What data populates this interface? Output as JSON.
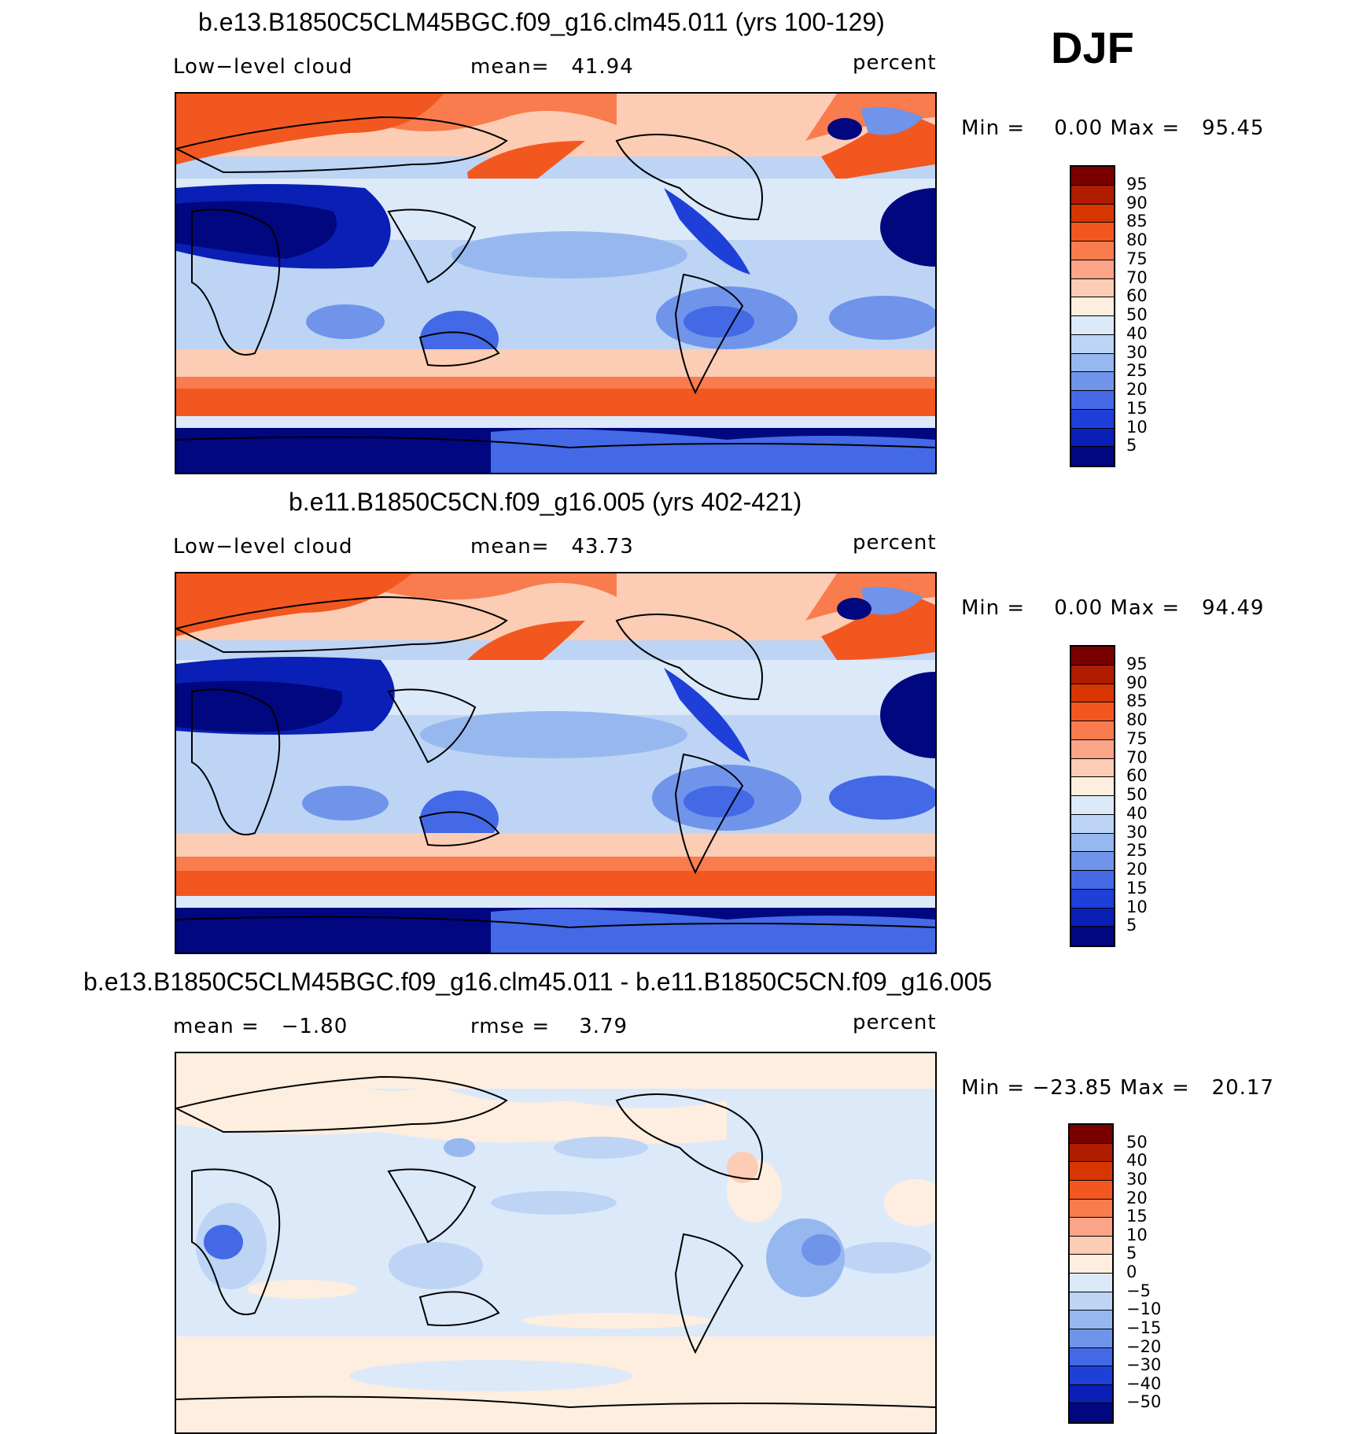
{
  "season": "DJF",
  "panels": [
    {
      "title": "b.e13.B1850C5CLM45BGC.f09_g16.clm45.011 (yrs 100-129)",
      "left_label": "Low−level cloud",
      "center_label": "mean=   41.94",
      "right_label": "percent",
      "minmax": "Min =    0.00 Max =   95.45",
      "colorbar_ticks": [
        "95",
        "90",
        "85",
        "80",
        "75",
        "70",
        "60",
        "50",
        "40",
        "30",
        "25",
        "20",
        "15",
        "10",
        "5"
      ]
    },
    {
      "title": "b.e11.B1850C5CN.f09_g16.005 (yrs 402-421)",
      "left_label": "Low−level cloud",
      "center_label": "mean=   43.73",
      "right_label": "percent",
      "minmax": "Min =    0.00 Max =   94.49",
      "colorbar_ticks": [
        "95",
        "90",
        "85",
        "80",
        "75",
        "70",
        "60",
        "50",
        "40",
        "30",
        "25",
        "20",
        "15",
        "10",
        "5"
      ]
    },
    {
      "title": "b.e13.B1850C5CLM45BGC.f09_g16.clm45.011 - b.e11.B1850C5CN.f09_g16.005",
      "left_label": "mean =   −1.80",
      "center_label": "rmse =    3.79",
      "right_label": "percent",
      "minmax": "Min = −23.85 Max =   20.17",
      "colorbar_ticks": [
        "50",
        "40",
        "30",
        "20",
        "15",
        "10",
        "5",
        "0",
        "−5",
        "−10",
        "−15",
        "−20",
        "−30",
        "−40",
        "−50"
      ]
    }
  ],
  "colors": {
    "palette_16": [
      "#7a0000",
      "#b01c00",
      "#d83600",
      "#f2571f",
      "#f97c4e",
      "#fca487",
      "#fdccb4",
      "#feeedf",
      "#dce9f9",
      "#bdd4f5",
      "#97b8ef",
      "#6f94ea",
      "#4469e6",
      "#1f3fd9",
      "#0a1fb5",
      "#00077f"
    ],
    "land_outline": "#000000"
  }
}
